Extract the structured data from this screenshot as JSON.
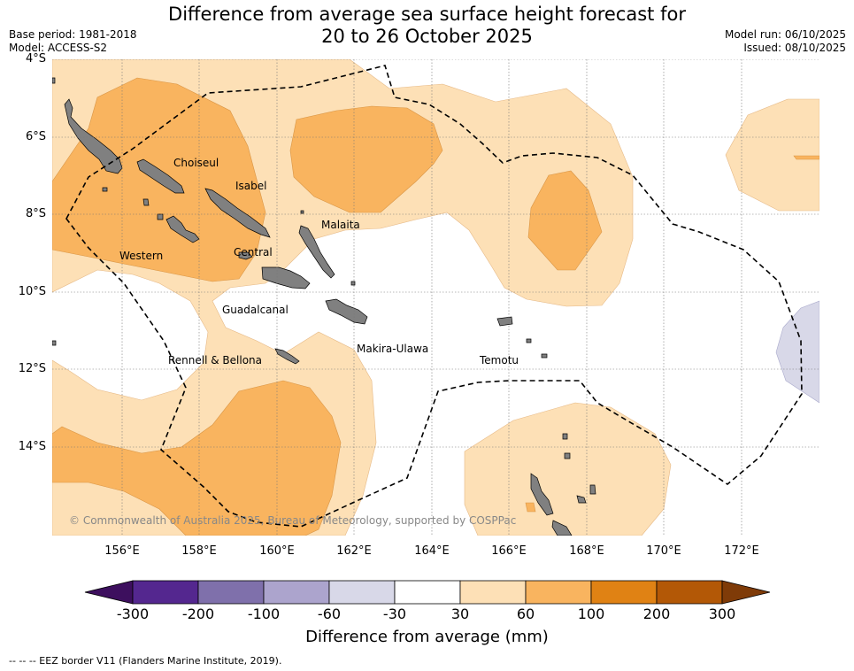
{
  "header": {
    "title_line1": "Difference from average sea surface height forecast for",
    "title_line2": "20 to 26 October 2025",
    "base_period": "Base period: 1981-2018",
    "model": "Model: ACCESS-S2",
    "model_run": "Model run: 06/10/2025",
    "issued": "Issued: 08/10/2025"
  },
  "map": {
    "lat_labels": [
      "4°S",
      "6°S",
      "8°S",
      "10°S",
      "12°S",
      "14°S"
    ],
    "lon_labels": [
      "156°E",
      "158°E",
      "160°E",
      "162°E",
      "164°E",
      "166°E",
      "168°E",
      "170°E",
      "172°E"
    ],
    "provinces": {
      "choiseul": "Choiseul",
      "isabel": "Isabel",
      "malaita": "Malaita",
      "western": "Western",
      "central": "Central",
      "guadalcanal": "Guadalcanal",
      "rennell": "Rennell & Bellona",
      "makira": "Makira-Ulawa",
      "temotu": "Temotu"
    },
    "copyright": "© Commonwealth of Australia 2025, Bureau of Meteorology, supported by COSPPac",
    "colors": {
      "land": "#808080",
      "c30_60": "#fde0b6",
      "c60_100": "#f9b45f",
      "cneg60_30": "#d8d8e8"
    }
  },
  "colorbar": {
    "ticks": [
      "-300",
      "-200",
      "-100",
      "-60",
      "-30",
      "30",
      "60",
      "100",
      "200",
      "300"
    ],
    "title": "Difference from average (mm)",
    "colors": [
      "#3d0f5e",
      "#54278f",
      "#7f70ab",
      "#aca4cd",
      "#d8d8e8",
      "#ffffff",
      "#fde0b6",
      "#f9b45f",
      "#e08214",
      "#b35806",
      "#7f3b08"
    ]
  },
  "footer": {
    "legend": "--  --  -- EEZ border V11 (Flanders Marine Institute, 2019)."
  }
}
